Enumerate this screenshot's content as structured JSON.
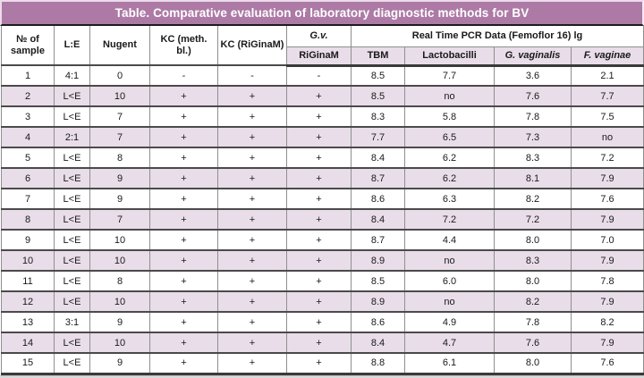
{
  "title": "Table. Comparative evaluation of laboratory diagnostic methods for BV",
  "colors": {
    "title_bg": "#AD7AA6",
    "title_text": "#FFFFFF",
    "alt_row_bg": "#E8DDE9",
    "subheader_bg": "#E8DDE9",
    "heavy_border": "#3A3A3A",
    "light_border": "#8F8F8F"
  },
  "table": {
    "rowspan_headers": [
      "№ of sample",
      "L:E",
      "Nugent",
      "KC (meth. bl.)",
      "KC (RiGinaM)"
    ],
    "gv_group": {
      "top": "G.v.",
      "sub": "RiGinaM"
    },
    "pcr_group": {
      "top": "Real Time PCR Data (Femoflor 16) lg",
      "subs": [
        "TBM",
        "Lactobacilli",
        "G. vaginalis",
        "F. vaginae"
      ]
    },
    "rows": [
      [
        "1",
        "4:1",
        "0",
        "-",
        "-",
        "-",
        "8.5",
        "7.7",
        "3.6",
        "2.1"
      ],
      [
        "2",
        "L<E",
        "10",
        "+",
        "+",
        "+",
        "8.5",
        "no",
        "7.6",
        "7.7"
      ],
      [
        "3",
        "L<E",
        "7",
        "+",
        "+",
        "+",
        "8.3",
        "5.8",
        "7.8",
        "7.5"
      ],
      [
        "4",
        "2:1",
        "7",
        "+",
        "+",
        "+",
        "7.7",
        "6.5",
        "7.3",
        "no"
      ],
      [
        "5",
        "L<E",
        "8",
        "+",
        "+",
        "+",
        "8.4",
        "6.2",
        "8.3",
        "7.2"
      ],
      [
        "6",
        "L<E",
        "9",
        "+",
        "+",
        "+",
        "8.7",
        "6.2",
        "8.1",
        "7.9"
      ],
      [
        "7",
        "L<E",
        "9",
        "+",
        "+",
        "+",
        "8.6",
        "6.3",
        "8.2",
        "7.6"
      ],
      [
        "8",
        "L<E",
        "7",
        "+",
        "+",
        "+",
        "8.4",
        "7.2",
        "7.2",
        "7.9"
      ],
      [
        "9",
        "L<E",
        "10",
        "+",
        "+",
        "+",
        "8.7",
        "4.4",
        "8.0",
        "7.0"
      ],
      [
        "10",
        "L<E",
        "10",
        "+",
        "+",
        "+",
        "8.9",
        "no",
        "8.3",
        "7.9"
      ],
      [
        "11",
        "L<E",
        "8",
        "+",
        "+",
        "+",
        "8.5",
        "6.0",
        "8.0",
        "7.8"
      ],
      [
        "12",
        "L<E",
        "10",
        "+",
        "+",
        "+",
        "8.9",
        "no",
        "8.2",
        "7.9"
      ],
      [
        "13",
        "3:1",
        "9",
        "+",
        "+",
        "+",
        "8.6",
        "4.9",
        "7.8",
        "8.2"
      ],
      [
        "14",
        "L<E",
        "10",
        "+",
        "+",
        "+",
        "8.4",
        "4.7",
        "7.6",
        "7.9"
      ],
      [
        "15",
        "L<E",
        "9",
        "+",
        "+",
        "+",
        "8.8",
        "6.1",
        "8.0",
        "7.6"
      ]
    ]
  }
}
